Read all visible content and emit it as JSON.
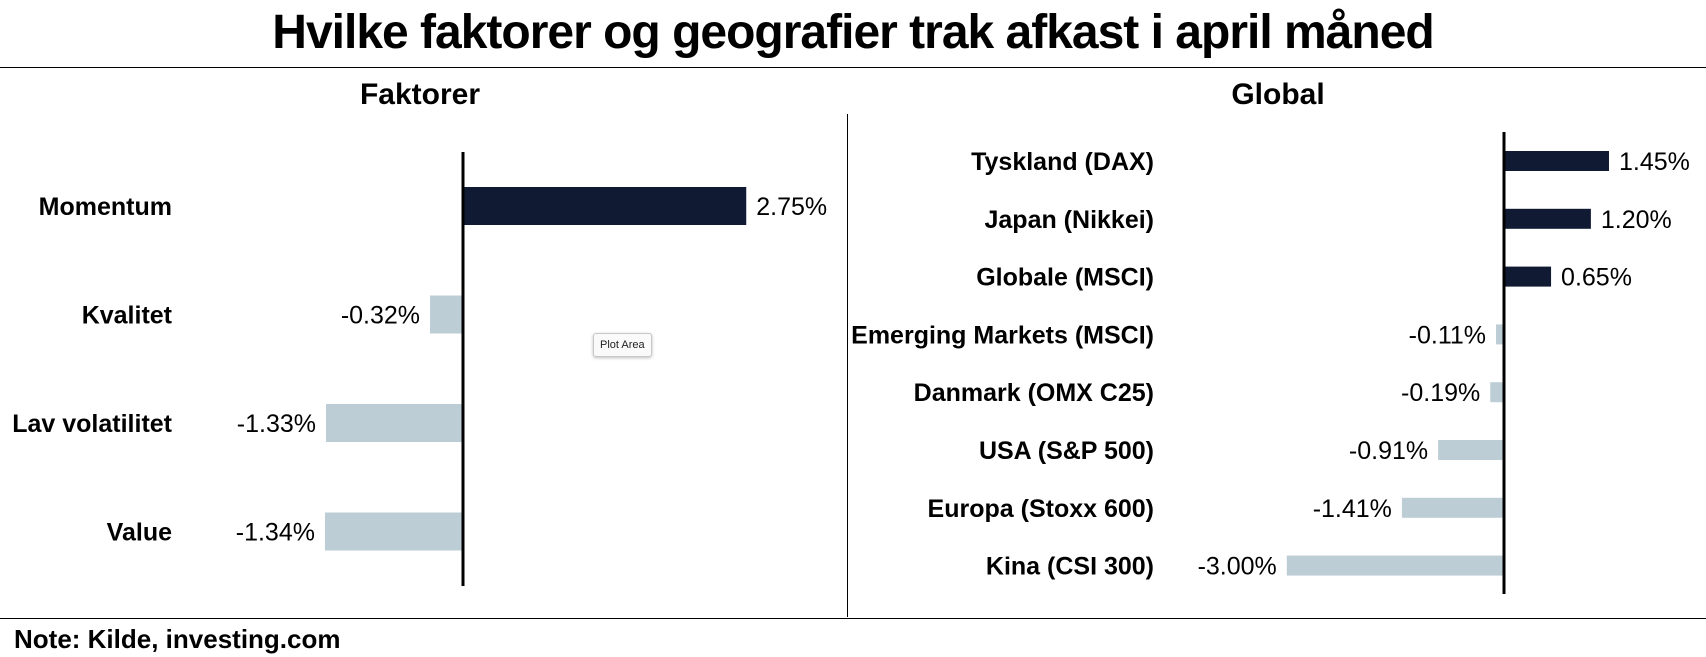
{
  "page": {
    "title": "Hvilke faktorer og geografier trak afkast i april måned",
    "note": "Note: Kilde, investing.com",
    "tooltip": "Plot Area"
  },
  "colors": {
    "positive": "#101a33",
    "negative": "#bccdd6",
    "axis": "#000000"
  },
  "chart_data": [
    {
      "type": "bar",
      "orientation": "horizontal",
      "title": "Faktorer",
      "categories": [
        "Momentum",
        "Kvalitet",
        "Lav volatilitet",
        "Value"
      ],
      "values": [
        2.75,
        -0.32,
        -1.33,
        -1.34
      ],
      "data_labels": [
        "2.75%",
        "-0.32%",
        "-1.33%",
        "-1.34%"
      ],
      "unit": "%",
      "grid": false,
      "legend": "none"
    },
    {
      "type": "bar",
      "orientation": "horizontal",
      "title": "Global",
      "categories": [
        "Tyskland (DAX)",
        "Japan (Nikkei)",
        "Globale (MSCI)",
        "Emerging Markets (MSCI)",
        "Danmark (OMX C25)",
        "USA (S&P 500)",
        "Europa (Stoxx 600)",
        "Kina (CSI 300)"
      ],
      "values": [
        1.45,
        1.2,
        0.65,
        -0.11,
        -0.19,
        -0.91,
        -1.41,
        -3.0
      ],
      "data_labels": [
        "1.45%",
        "1.20%",
        "0.65%",
        "-0.11%",
        "-0.19%",
        "-0.91%",
        "-1.41%",
        "-3.00%"
      ],
      "unit": "%",
      "grid": false,
      "legend": "none"
    }
  ]
}
